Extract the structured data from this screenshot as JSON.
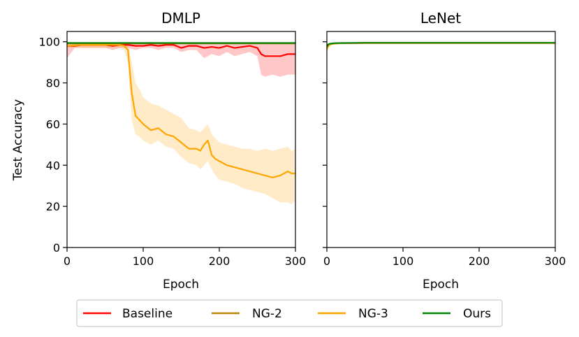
{
  "legend": {
    "entries": [
      {
        "label": "Baseline",
        "color": "#ff0000"
      },
      {
        "label": "NG-2",
        "color": "#b8860b"
      },
      {
        "label": "NG-3",
        "color": "#ffa500"
      },
      {
        "label": "Ours",
        "color": "#008000"
      }
    ],
    "placement": "bottom-center"
  },
  "chart_data": [
    {
      "type": "line",
      "title": "DMLP",
      "xlabel": "Epoch",
      "ylabel": "Test Accuracy",
      "xlim": [
        0,
        300
      ],
      "ylim": [
        0,
        105
      ],
      "xticks": [
        0,
        100,
        200,
        300
      ],
      "yticks": [
        0,
        20,
        40,
        60,
        80,
        100
      ],
      "grid": false,
      "series": [
        {
          "name": "Baseline",
          "color": "#ff0000",
          "x": [
            0,
            10,
            20,
            30,
            40,
            50,
            60,
            70,
            80,
            90,
            100,
            110,
            120,
            130,
            140,
            150,
            160,
            170,
            180,
            190,
            200,
            210,
            220,
            230,
            240,
            250,
            255,
            260,
            270,
            280,
            290,
            300
          ],
          "y": [
            98,
            98,
            98.5,
            98.5,
            98.5,
            98.5,
            98,
            98.5,
            98.5,
            98,
            98,
            98.5,
            98,
            98.5,
            98.5,
            97,
            98,
            98,
            97,
            97.5,
            97,
            98,
            97,
            97.5,
            98,
            97,
            94,
            93,
            93,
            93,
            94,
            94
          ],
          "band_low": [
            92,
            97,
            97,
            97,
            97,
            97,
            96,
            97,
            97,
            96,
            97,
            97,
            96,
            97,
            97,
            95,
            96,
            96,
            92,
            94,
            93,
            95,
            93,
            94,
            95,
            93,
            84,
            83,
            84,
            83,
            84,
            84
          ],
          "band_high": [
            99.5,
            99.5,
            99.5,
            99.5,
            99.5,
            99.5,
            99.5,
            99.5,
            99.5,
            99.5,
            99.5,
            99.5,
            99.5,
            99.5,
            99.5,
            99.5,
            99.5,
            99.5,
            99.5,
            99.5,
            99.5,
            99.5,
            99.5,
            99.5,
            99.5,
            99.5,
            99.5,
            99.5,
            99.5,
            99.5,
            99.5,
            99.5
          ]
        },
        {
          "name": "NG-2",
          "color": "#b8860b",
          "x": [
            0,
            50,
            100,
            150,
            200,
            250,
            300
          ],
          "y": [
            99.2,
            99.2,
            99.2,
            99.2,
            99.2,
            99.2,
            99.2
          ],
          "band_low": [
            98.8,
            98.8,
            98.8,
            98.8,
            98.8,
            98.8,
            98.8
          ],
          "band_high": [
            99.5,
            99.5,
            99.5,
            99.5,
            99.5,
            99.5,
            99.5
          ]
        },
        {
          "name": "NG-3",
          "color": "#ffa500",
          "x": [
            0,
            20,
            40,
            60,
            70,
            75,
            80,
            85,
            90,
            95,
            100,
            110,
            120,
            130,
            140,
            150,
            160,
            170,
            175,
            180,
            185,
            190,
            195,
            200,
            210,
            220,
            230,
            240,
            250,
            260,
            270,
            280,
            290,
            295,
            300
          ],
          "y": [
            98,
            98.5,
            98.5,
            98.5,
            98.5,
            98,
            96,
            75,
            64,
            62,
            60,
            57,
            58,
            55,
            54,
            51,
            48,
            48,
            47,
            50,
            52,
            45,
            43,
            42,
            40,
            39,
            38,
            37,
            36,
            35,
            34,
            35,
            37,
            36,
            36
          ],
          "band_low": [
            97,
            97,
            97,
            97,
            97,
            96,
            90,
            62,
            55,
            54,
            52,
            50,
            52,
            49,
            48,
            44,
            41,
            40,
            38,
            40,
            42,
            38,
            35,
            33,
            32,
            31,
            29,
            28,
            27,
            26,
            24,
            22,
            22,
            21,
            23
          ],
          "band_high": [
            99.5,
            99.5,
            99.5,
            99.5,
            99.5,
            99.5,
            99,
            90,
            80,
            77,
            73,
            70,
            69,
            67,
            65,
            63,
            58,
            57,
            56,
            58,
            60,
            55,
            53,
            51,
            50,
            49,
            48,
            48,
            47,
            48,
            47,
            48,
            49,
            47,
            48
          ]
        },
        {
          "name": "Ours",
          "color": "#008000",
          "x": [
            0,
            50,
            100,
            150,
            200,
            250,
            300
          ],
          "y": [
            99.4,
            99.4,
            99.4,
            99.4,
            99.4,
            99.4,
            99.4
          ],
          "band_low": [
            98.8,
            98.8,
            98.8,
            98.8,
            98.8,
            98.8,
            98.8
          ],
          "band_high": [
            99.7,
            99.7,
            99.7,
            99.7,
            99.7,
            99.7,
            99.7
          ]
        }
      ]
    },
    {
      "type": "line",
      "title": "LeNet",
      "xlabel": "Epoch",
      "ylabel": "",
      "xlim": [
        0,
        300
      ],
      "ylim": [
        0,
        105
      ],
      "xticks": [
        0,
        100,
        200,
        300
      ],
      "yticks": [
        0,
        20,
        40,
        60,
        80,
        100
      ],
      "grid": false,
      "series": [
        {
          "name": "Baseline",
          "color": "#ff0000",
          "x": [
            0,
            2,
            5,
            10,
            20,
            50,
            100,
            150,
            200,
            250,
            300
          ],
          "y": [
            97,
            98.5,
            99,
            99.2,
            99.3,
            99.4,
            99.4,
            99.4,
            99.4,
            99.4,
            99.4
          ],
          "band_low": [
            95,
            97.5,
            98.5,
            98.9,
            99,
            99.2,
            99.2,
            99.2,
            99.2,
            99.2,
            99.2
          ],
          "band_high": [
            98.5,
            99,
            99.3,
            99.5,
            99.5,
            99.5,
            99.5,
            99.5,
            99.5,
            99.5,
            99.5
          ]
        },
        {
          "name": "NG-2",
          "color": "#b8860b",
          "x": [
            0,
            2,
            5,
            10,
            20,
            50,
            100,
            150,
            200,
            250,
            300
          ],
          "y": [
            97,
            98.5,
            99,
            99.2,
            99.3,
            99.4,
            99.4,
            99.4,
            99.4,
            99.4,
            99.4
          ],
          "band_low": [
            95,
            97.5,
            98.5,
            98.9,
            99,
            99.2,
            99.2,
            99.2,
            99.2,
            99.2,
            99.2
          ],
          "band_high": [
            98.5,
            99,
            99.3,
            99.5,
            99.5,
            99.5,
            99.5,
            99.5,
            99.5,
            99.5,
            99.5
          ]
        },
        {
          "name": "NG-3",
          "color": "#ffa500",
          "x": [
            0,
            2,
            5,
            10,
            20,
            50,
            100,
            150,
            200,
            250,
            300
          ],
          "y": [
            96.5,
            98,
            98.8,
            99.1,
            99.3,
            99.4,
            99.4,
            99.4,
            99.4,
            99.4,
            99.4
          ],
          "band_low": [
            94,
            97,
            98.3,
            98.8,
            99,
            99.2,
            99.2,
            99.2,
            99.2,
            99.2,
            99.2
          ],
          "band_high": [
            98.5,
            99,
            99.3,
            99.5,
            99.5,
            99.5,
            99.5,
            99.5,
            99.5,
            99.5,
            99.5
          ]
        },
        {
          "name": "Ours",
          "color": "#008000",
          "x": [
            0,
            2,
            5,
            10,
            20,
            50,
            100,
            150,
            200,
            250,
            300
          ],
          "y": [
            97.5,
            98.8,
            99.1,
            99.3,
            99.4,
            99.5,
            99.5,
            99.5,
            99.5,
            99.5,
            99.5
          ],
          "band_low": [
            96,
            98,
            98.7,
            99,
            99.2,
            99.3,
            99.3,
            99.3,
            99.3,
            99.3,
            99.3
          ],
          "band_high": [
            98.8,
            99.2,
            99.4,
            99.6,
            99.6,
            99.6,
            99.6,
            99.6,
            99.6,
            99.6,
            99.6
          ]
        }
      ]
    }
  ]
}
